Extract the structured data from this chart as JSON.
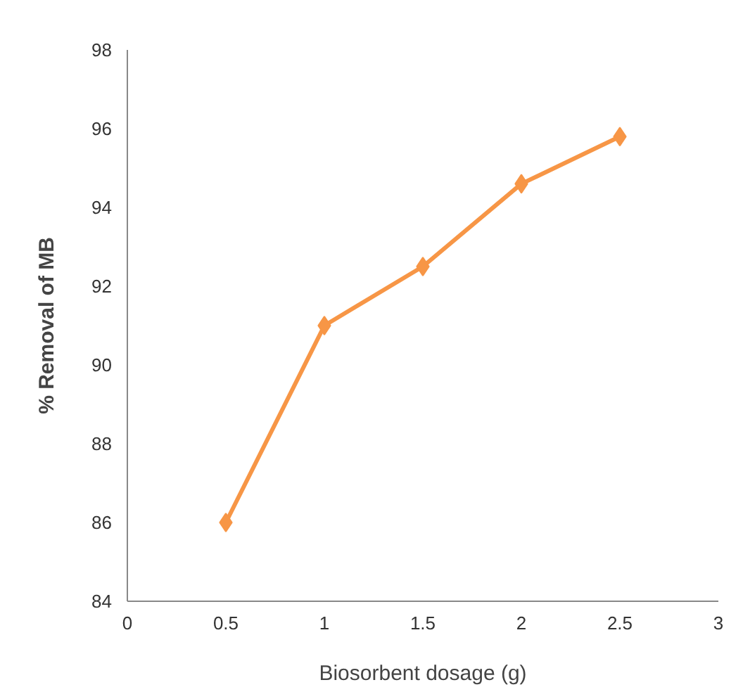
{
  "chart_data": {
    "type": "line",
    "xlabel": "Biosorbent dosage (g)",
    "ylabel": "% Removal of MB",
    "x": [
      0.5,
      1,
      1.5,
      2,
      2.5
    ],
    "series": [
      {
        "color": "#f79646",
        "values": [
          86,
          91.0,
          92.5,
          94.6,
          95.8
        ]
      }
    ],
    "xlim": [
      0,
      3
    ],
    "xticks": [
      0,
      0.5,
      1,
      1.5,
      2,
      2.5,
      3
    ],
    "ylim": [
      84,
      98
    ],
    "yticks": [
      84,
      86,
      88,
      90,
      92,
      94,
      96,
      98
    ],
    "grid": false,
    "marker": "diamond",
    "line_style": "solid"
  }
}
